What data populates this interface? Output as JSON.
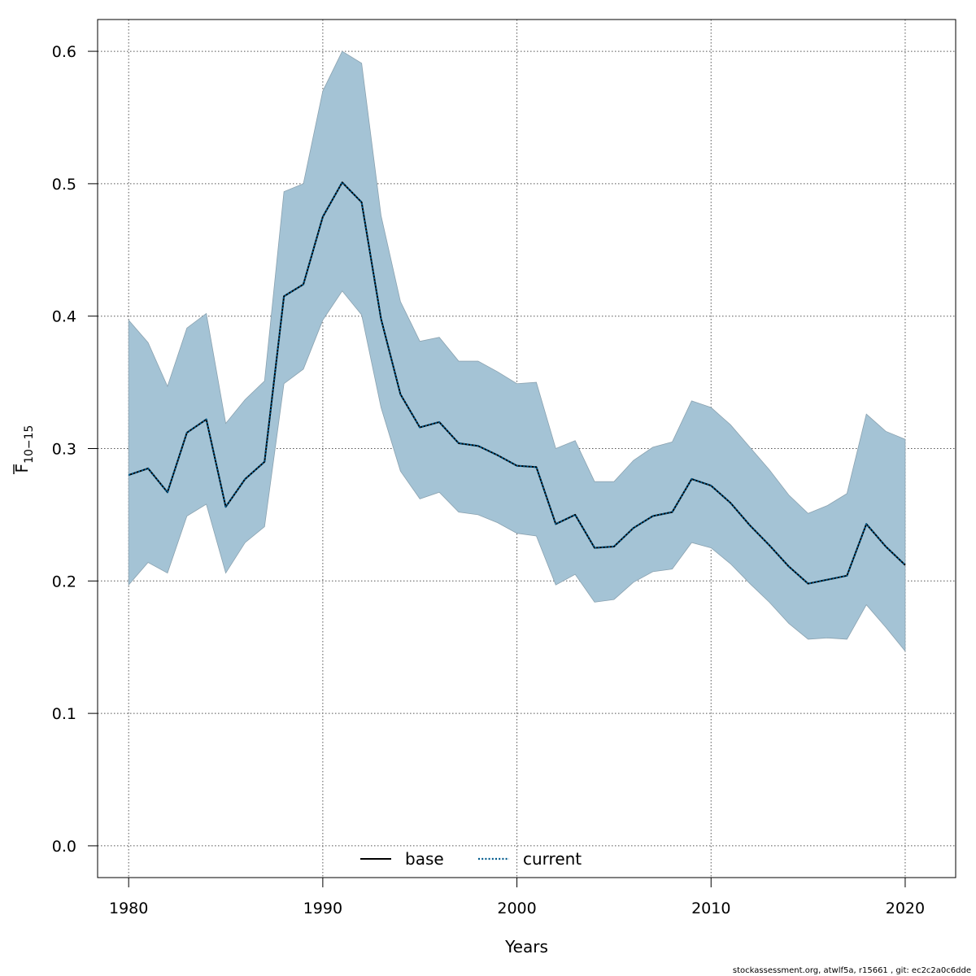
{
  "chart_data": {
    "type": "line",
    "xlabel": "Years",
    "ylabel": {
      "base": "F",
      "subscript": "10−15"
    },
    "xlim": [
      1978.4,
      2022.6
    ],
    "ylim": [
      -0.024,
      0.624
    ],
    "x_ticks": [
      1980,
      1990,
      2000,
      2010,
      2020
    ],
    "y_ticks": [
      0.0,
      0.1,
      0.2,
      0.3,
      0.4,
      0.5,
      0.6
    ],
    "x_tick_labels": [
      "1980",
      "1990",
      "2000",
      "2010",
      "2020"
    ],
    "y_tick_labels": [
      "0.0",
      "0.1",
      "0.2",
      "0.3",
      "0.4",
      "0.5",
      "0.6"
    ],
    "grid": true,
    "legend_position": "bottom-center",
    "x": [
      1980,
      1981,
      1982,
      1983,
      1984,
      1985,
      1986,
      1987,
      1988,
      1989,
      1990,
      1991,
      1992,
      1993,
      1994,
      1995,
      1996,
      1997,
      1998,
      1999,
      2000,
      2001,
      2002,
      2003,
      2004,
      2005,
      2006,
      2007,
      2008,
      2009,
      2010,
      2011,
      2012,
      2013,
      2014,
      2015,
      2016,
      2017,
      2018,
      2019,
      2020
    ],
    "series": [
      {
        "name": "base",
        "style": "solid",
        "color": "#000000",
        "values": [
          0.28,
          0.285,
          0.267,
          0.312,
          0.322,
          0.256,
          0.277,
          0.29,
          0.415,
          0.424,
          0.475,
          0.501,
          0.486,
          0.398,
          0.341,
          0.316,
          0.32,
          0.304,
          0.302,
          0.295,
          0.287,
          0.286,
          0.243,
          0.25,
          0.225,
          0.226,
          0.24,
          0.249,
          0.252,
          0.277,
          0.272,
          0.259,
          0.242,
          0.227,
          0.211,
          0.198,
          0.201,
          0.204,
          0.243,
          0.226,
          0.212
        ]
      },
      {
        "name": "current",
        "style": "dotted",
        "color": "#005a8c",
        "values": [
          0.28,
          0.285,
          0.267,
          0.312,
          0.322,
          0.256,
          0.277,
          0.29,
          0.415,
          0.424,
          0.475,
          0.501,
          0.486,
          0.398,
          0.341,
          0.316,
          0.32,
          0.304,
          0.302,
          0.295,
          0.287,
          0.286,
          0.243,
          0.25,
          0.225,
          0.226,
          0.24,
          0.249,
          0.252,
          0.277,
          0.272,
          0.259,
          0.242,
          0.227,
          0.211,
          0.198,
          0.201,
          0.204,
          0.243,
          0.226,
          0.212
        ]
      }
    ],
    "confidence_band": {
      "color": "#a4c3d5",
      "lower": [
        0.197,
        0.214,
        0.206,
        0.249,
        0.258,
        0.206,
        0.229,
        0.241,
        0.349,
        0.36,
        0.397,
        0.419,
        0.401,
        0.331,
        0.283,
        0.262,
        0.267,
        0.252,
        0.25,
        0.244,
        0.236,
        0.234,
        0.197,
        0.205,
        0.184,
        0.186,
        0.199,
        0.207,
        0.209,
        0.229,
        0.225,
        0.213,
        0.198,
        0.184,
        0.168,
        0.156,
        0.157,
        0.156,
        0.182,
        0.165,
        0.147
      ],
      "upper": [
        0.397,
        0.38,
        0.347,
        0.391,
        0.402,
        0.319,
        0.337,
        0.351,
        0.494,
        0.5,
        0.57,
        0.6,
        0.591,
        0.476,
        0.411,
        0.381,
        0.384,
        0.366,
        0.366,
        0.358,
        0.349,
        0.35,
        0.3,
        0.306,
        0.275,
        0.275,
        0.291,
        0.301,
        0.305,
        0.336,
        0.331,
        0.318,
        0.301,
        0.284,
        0.265,
        0.251,
        0.257,
        0.266,
        0.326,
        0.313,
        0.307
      ]
    }
  },
  "footer": "stockassessment.org, atwlf5a, r15661 , git: ec2c2a0c6dde"
}
